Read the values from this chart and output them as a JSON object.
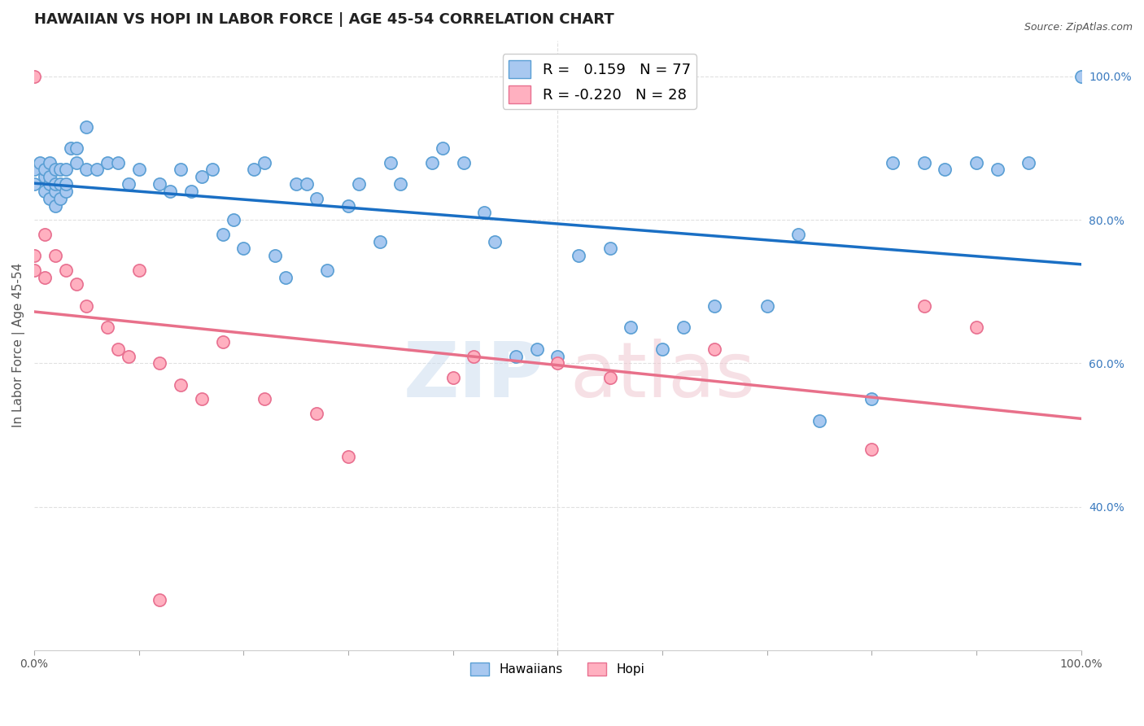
{
  "title": "HAWAIIAN VS HOPI IN LABOR FORCE | AGE 45-54 CORRELATION CHART",
  "source": "Source: ZipAtlas.com",
  "ylabel": "In Labor Force | Age 45-54",
  "xlim": [
    0,
    1
  ],
  "ylim": [
    0.2,
    1.05
  ],
  "y_tick_labels_right": [
    "100.0%",
    "80.0%",
    "60.0%",
    "40.0%"
  ],
  "y_ticks_right": [
    1.0,
    0.8,
    0.6,
    0.4
  ],
  "hawaiians_color": "#a8c8f0",
  "hawaiians_edge_color": "#5a9fd4",
  "hopi_color": "#ffb0c0",
  "hopi_edge_color": "#e87090",
  "hawaiians_line_color": "#1a6fc4",
  "hopi_line_color": "#e8708a",
  "hawaiians_x": [
    0.0,
    0.0,
    0.005,
    0.01,
    0.01,
    0.01,
    0.015,
    0.015,
    0.015,
    0.015,
    0.02,
    0.02,
    0.02,
    0.02,
    0.025,
    0.025,
    0.025,
    0.03,
    0.03,
    0.03,
    0.035,
    0.04,
    0.04,
    0.05,
    0.05,
    0.06,
    0.07,
    0.08,
    0.09,
    0.1,
    0.12,
    0.13,
    0.14,
    0.15,
    0.16,
    0.17,
    0.18,
    0.19,
    0.2,
    0.21,
    0.22,
    0.23,
    0.24,
    0.25,
    0.26,
    0.27,
    0.28,
    0.3,
    0.31,
    0.33,
    0.34,
    0.35,
    0.38,
    0.39,
    0.41,
    0.43,
    0.44,
    0.46,
    0.48,
    0.5,
    0.52,
    0.55,
    0.57,
    0.6,
    0.62,
    0.65,
    0.7,
    0.73,
    0.75,
    0.8,
    0.82,
    0.85,
    0.87,
    0.9,
    0.92,
    0.95,
    1.0
  ],
  "hawaiians_y": [
    0.87,
    0.85,
    0.88,
    0.84,
    0.86,
    0.87,
    0.83,
    0.85,
    0.86,
    0.88,
    0.82,
    0.84,
    0.85,
    0.87,
    0.83,
    0.85,
    0.87,
    0.84,
    0.85,
    0.87,
    0.9,
    0.88,
    0.9,
    0.93,
    0.87,
    0.87,
    0.88,
    0.88,
    0.85,
    0.87,
    0.85,
    0.84,
    0.87,
    0.84,
    0.86,
    0.87,
    0.78,
    0.8,
    0.76,
    0.87,
    0.88,
    0.75,
    0.72,
    0.85,
    0.85,
    0.83,
    0.73,
    0.82,
    0.85,
    0.77,
    0.88,
    0.85,
    0.88,
    0.9,
    0.88,
    0.81,
    0.77,
    0.61,
    0.62,
    0.61,
    0.75,
    0.76,
    0.65,
    0.62,
    0.65,
    0.68,
    0.68,
    0.78,
    0.52,
    0.55,
    0.88,
    0.88,
    0.87,
    0.88,
    0.87,
    0.88,
    1.0
  ],
  "hopi_x": [
    0.0,
    0.0,
    0.0,
    0.01,
    0.01,
    0.02,
    0.03,
    0.04,
    0.05,
    0.07,
    0.08,
    0.09,
    0.1,
    0.12,
    0.14,
    0.16,
    0.18,
    0.22,
    0.27,
    0.3,
    0.4,
    0.42,
    0.5,
    0.55,
    0.65,
    0.8,
    0.85,
    0.9,
    0.12
  ],
  "hopi_y": [
    0.73,
    0.75,
    1.0,
    0.78,
    0.72,
    0.75,
    0.73,
    0.71,
    0.68,
    0.65,
    0.62,
    0.61,
    0.73,
    0.6,
    0.57,
    0.55,
    0.63,
    0.55,
    0.53,
    0.47,
    0.58,
    0.61,
    0.6,
    0.58,
    0.62,
    0.48,
    0.68,
    0.65,
    0.27
  ],
  "grid_color": "#e0e0e0",
  "background_color": "#ffffff",
  "title_fontsize": 13,
  "axis_label_fontsize": 11,
  "tick_fontsize": 10
}
